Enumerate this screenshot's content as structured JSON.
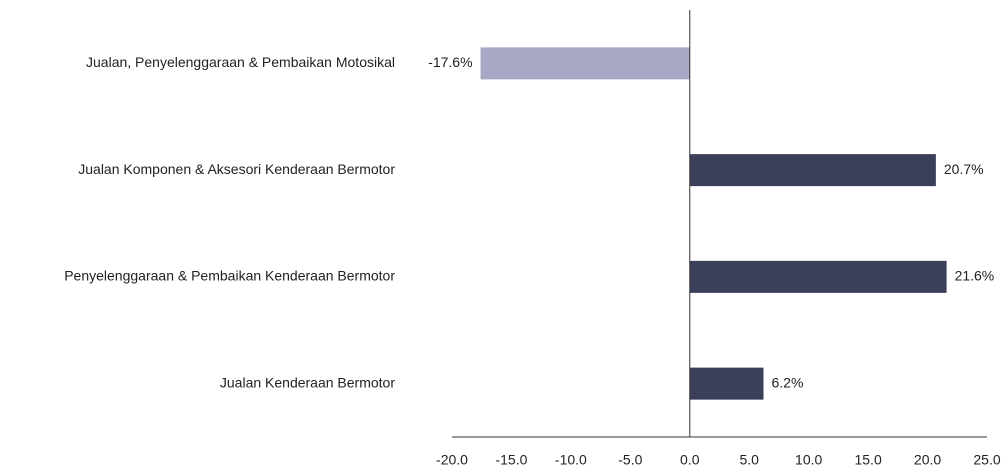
{
  "chart_data": {
    "type": "hbar",
    "categories": [
      "Jualan, Penyelenggaraan & Pembaikan Motosikal",
      "Jualan Komponen & Aksesori Kenderaan Bermotor",
      "Penyelenggaraan & Pembaikan Kenderaan Bermotor",
      "Jualan Kenderaan Bermotor"
    ],
    "values": [
      -17.6,
      20.7,
      21.6,
      6.2
    ],
    "value_labels": [
      "-17.6%",
      "20.7%",
      "21.6%",
      "6.2%"
    ],
    "colors": [
      "#a7a7c6",
      "#3b3f5a",
      "#3b3f5a",
      "#3b3f5a"
    ],
    "xlim": [
      -20,
      25
    ],
    "xticks": [
      {
        "value": -20,
        "label": "-20.0"
      },
      {
        "value": -15,
        "label": "-15.0"
      },
      {
        "value": -10,
        "label": "-10.0"
      },
      {
        "value": -5,
        "label": "-5.0"
      },
      {
        "value": 0,
        "label": "0.0"
      },
      {
        "value": 5,
        "label": "5.0"
      },
      {
        "value": 10,
        "label": "10.0"
      },
      {
        "value": 15,
        "label": "15.0"
      },
      {
        "value": 20,
        "label": "20.0"
      },
      {
        "value": 25,
        "label": "25.0"
      }
    ],
    "grid": false
  }
}
